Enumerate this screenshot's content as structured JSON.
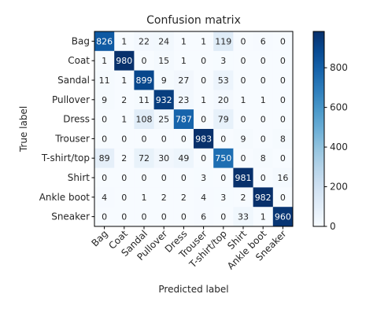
{
  "chart_data": {
    "type": "heatmap",
    "title": "Confusion matrix",
    "xlabel": "Predicted label",
    "ylabel": "True label",
    "x_categories": [
      "Bag",
      "Coat",
      "Sandal",
      "Pullover",
      "Dress",
      "Trouser",
      "T-shirt/top",
      "Shirt",
      "Ankle boot",
      "Sneaker"
    ],
    "y_categories": [
      "Bag",
      "Coat",
      "Sandal",
      "Pullover",
      "Dress",
      "Trouser",
      "T-shirt/top",
      "Shirt",
      "Ankle boot",
      "Sneaker"
    ],
    "values": [
      [
        826,
        1,
        22,
        24,
        1,
        1,
        119,
        0,
        6,
        0
      ],
      [
        1,
        980,
        0,
        15,
        1,
        0,
        3,
        0,
        0,
        0
      ],
      [
        11,
        1,
        899,
        9,
        27,
        0,
        53,
        0,
        0,
        0
      ],
      [
        9,
        2,
        11,
        932,
        23,
        1,
        20,
        1,
        1,
        0
      ],
      [
        0,
        1,
        108,
        25,
        787,
        0,
        79,
        0,
        0,
        0
      ],
      [
        0,
        0,
        0,
        0,
        0,
        983,
        0,
        9,
        0,
        8
      ],
      [
        89,
        2,
        72,
        30,
        49,
        0,
        750,
        0,
        8,
        0
      ],
      [
        0,
        0,
        0,
        0,
        0,
        3,
        0,
        981,
        0,
        16
      ],
      [
        4,
        0,
        1,
        2,
        2,
        4,
        3,
        2,
        982,
        0
      ],
      [
        0,
        0,
        0,
        0,
        0,
        6,
        0,
        33,
        1,
        960
      ]
    ],
    "colormap": "Blues",
    "colorbar": {
      "ticks": [
        0,
        200,
        400,
        600,
        800
      ],
      "range": [
        0,
        983
      ]
    },
    "colors": {
      "low": "#f7fbff",
      "high": "#08306b",
      "text_dark": "#262626",
      "text_light": "#ffffff"
    }
  }
}
